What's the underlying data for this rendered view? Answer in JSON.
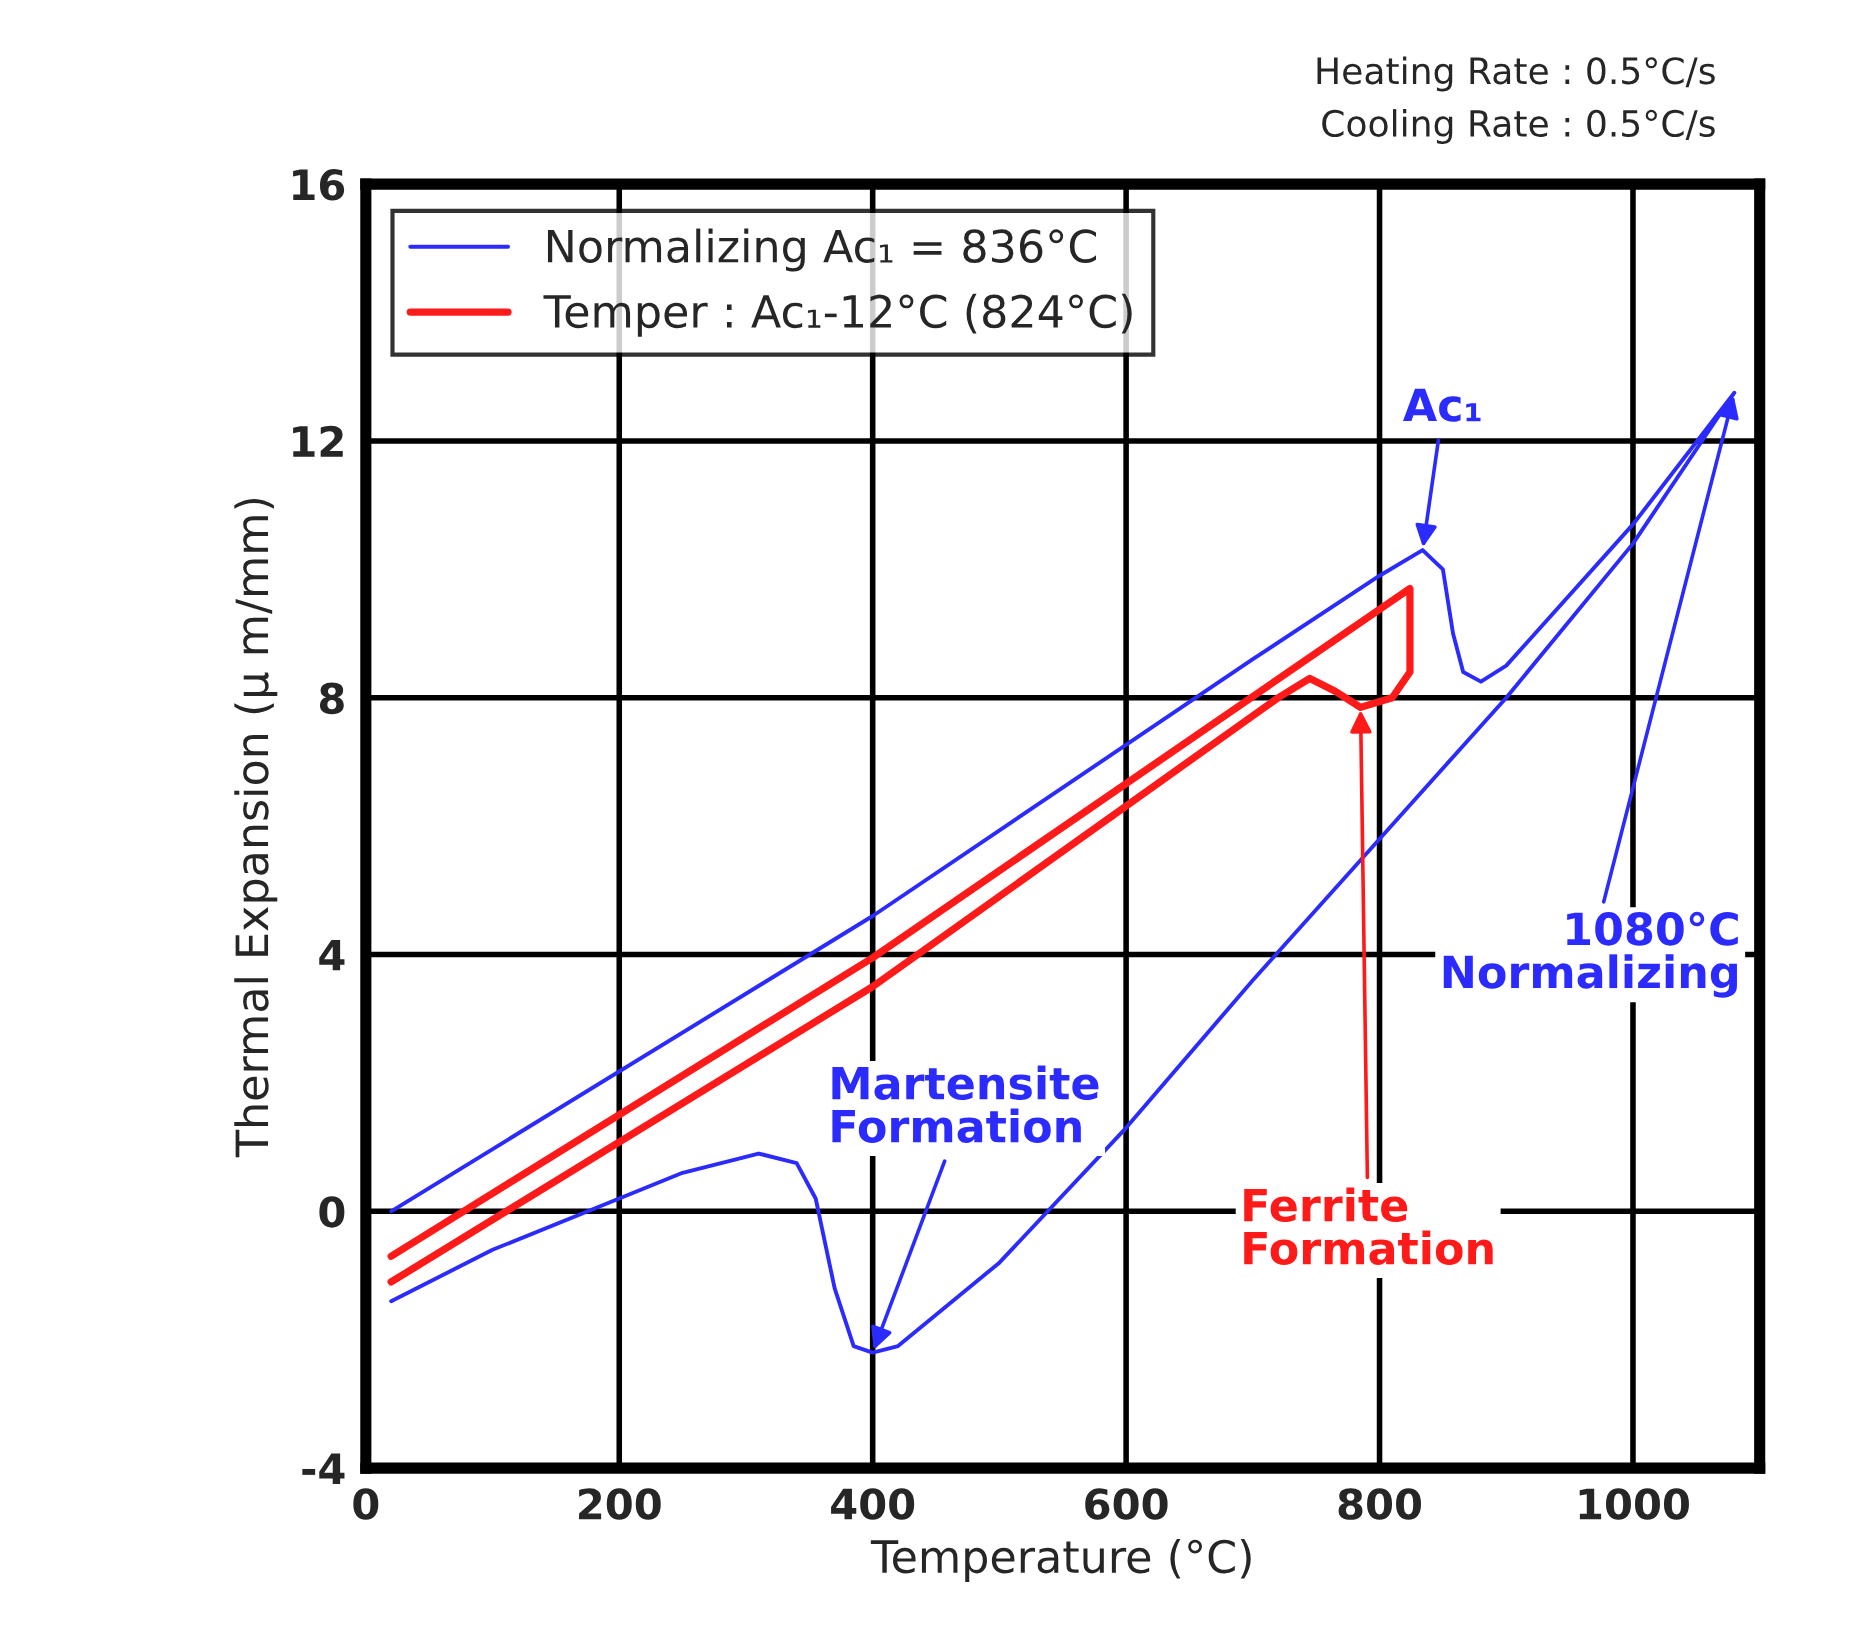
{
  "chart_data": {
    "type": "line",
    "xlabel": "Temperature (°C)",
    "ylabel": "Thermal Expansion (μ m/mm)",
    "xlim": [
      0,
      1100
    ],
    "xticks": [
      0,
      200,
      400,
      600,
      800,
      1000
    ],
    "ylim": [
      -4,
      16
    ],
    "yticks": [
      -4,
      0,
      4,
      8,
      12,
      16
    ],
    "grid": true,
    "legend": "top left",
    "series": [
      {
        "name": "Normalizing Ac₁ = 836°C",
        "color": "#2b2bff",
        "x": [
          20,
          400,
          700,
          800,
          834,
          850,
          858,
          866,
          880,
          900,
          1000,
          1080,
          1000,
          900,
          800,
          700,
          600,
          500,
          420,
          400,
          385,
          370,
          355,
          340,
          310,
          250,
          200,
          100,
          20
        ],
        "values": [
          0,
          4.6,
          8.6,
          9.9,
          10.3,
          10.0,
          9.0,
          8.4,
          8.25,
          8.5,
          10.7,
          12.75,
          10.4,
          8.0,
          5.8,
          3.6,
          1.3,
          -0.8,
          -2.1,
          -2.2,
          -2.1,
          -1.2,
          0.2,
          0.75,
          0.9,
          0.6,
          0.2,
          -0.6,
          -1.4
        ]
      },
      {
        "name": "Temper : Ac₁-12°C (824°C)",
        "color": "#ff1a1a",
        "x": [
          20,
          400,
          824,
          824,
          810,
          785,
          765,
          745,
          720,
          400,
          20
        ],
        "values": [
          -0.7,
          3.95,
          9.7,
          8.4,
          8.0,
          7.85,
          8.1,
          8.3,
          8.0,
          3.5,
          -1.1
        ]
      }
    ],
    "annotations": [
      "Heating Rate : 0.5°C/s",
      "Cooling Rate : 0.5°C/s",
      {
        "text": "Ac₁",
        "x": 834,
        "y": 10.3
      },
      {
        "text": "1080°C\nNormalizing",
        "x": 1080,
        "y": 12.75
      },
      {
        "text": "Martensite\nFormation",
        "x": 400,
        "y": -2.2
      },
      {
        "text": "Ferrite\nFormation",
        "x": 785,
        "y": 7.85
      }
    ]
  }
}
